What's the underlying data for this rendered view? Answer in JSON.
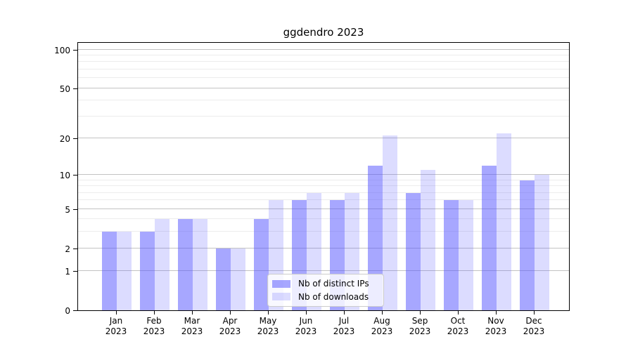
{
  "chart_data": {
    "type": "bar",
    "title": "ggdendro 2023",
    "year_label": "2023",
    "categories": [
      "Jan",
      "Feb",
      "Mar",
      "Apr",
      "May",
      "Jun",
      "Jul",
      "Aug",
      "Sep",
      "Oct",
      "Nov",
      "Dec"
    ],
    "series": [
      {
        "name": "Nb of distinct IPs",
        "color": "rgba(80,80,255,0.5)",
        "values": [
          3,
          3,
          4,
          2,
          4,
          6,
          6,
          12,
          7,
          6,
          12,
          9
        ]
      },
      {
        "name": "Nb of downloads",
        "color": "rgba(80,80,255,0.2)",
        "values": [
          3,
          4,
          4,
          2,
          6,
          7,
          7,
          21,
          11,
          6,
          22,
          10
        ]
      }
    ],
    "y_scale": "log1p",
    "y_major_ticks": [
      0,
      1,
      2,
      5,
      10,
      20,
      50,
      100
    ],
    "y_minor_gridlines": [
      3,
      4,
      6,
      7,
      8,
      9,
      30,
      40,
      60,
      70,
      80,
      90
    ],
    "ylim": [
      0,
      115.5
    ],
    "grid": true,
    "legend_position": "lower center"
  },
  "colors": {
    "major_grid": "#c3c3c3",
    "minor_grid": "#ececec",
    "axis": "#000000",
    "text": "#000000",
    "background": "#ffffff"
  }
}
